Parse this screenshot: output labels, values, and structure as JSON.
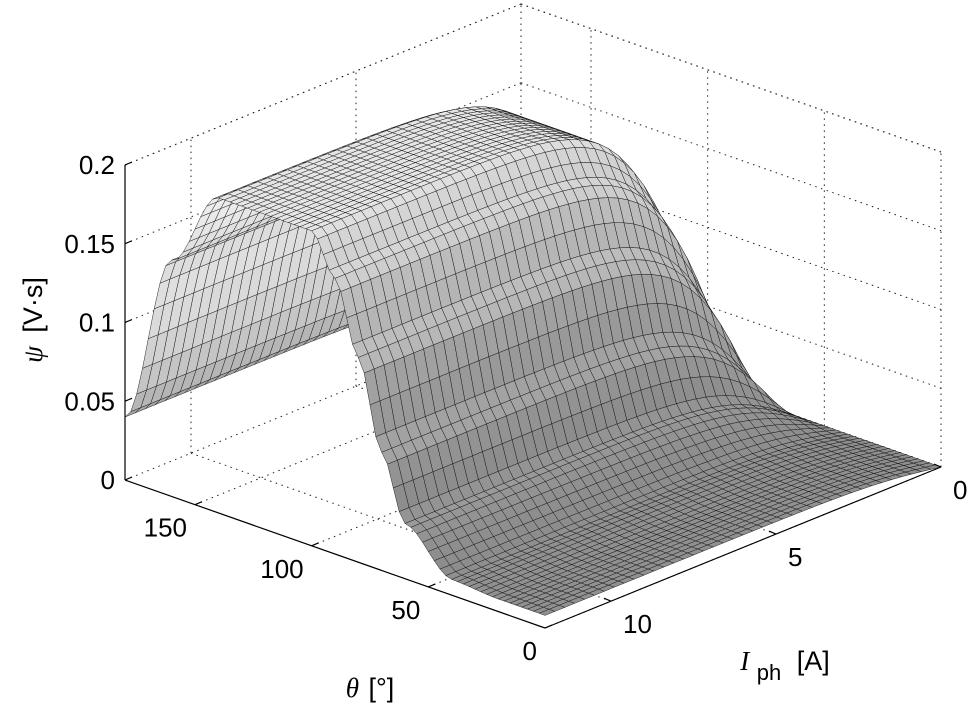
{
  "chart_data": {
    "type": "surface",
    "title": "",
    "x_axis": {
      "name": "theta",
      "symbol": "θ",
      "unit": "[°]",
      "range": [
        0,
        180
      ],
      "ticks": [
        0,
        50,
        100,
        150
      ],
      "tick_labels": [
        "0",
        "50",
        "100",
        "150"
      ]
    },
    "y_axis": {
      "name": "I_ph",
      "symbol": "I",
      "subscript": "ph",
      "unit": "[A]",
      "range": [
        0,
        12
      ],
      "ticks": [
        0,
        5,
        10
      ],
      "tick_labels": [
        "0",
        "5",
        "10"
      ]
    },
    "z_axis": {
      "name": "psi",
      "symbol": "ψ",
      "unit": "[V·s]",
      "range": [
        0,
        0.2
      ],
      "ticks": [
        0,
        0.05,
        0.1,
        0.15,
        0.2
      ],
      "tick_labels": [
        "0",
        "0.05",
        "0.1",
        "0.15",
        "0.2"
      ]
    },
    "grid": true,
    "colormap": "gray",
    "surface": {
      "theta_samples": [
        0,
        20,
        40,
        60,
        70,
        80,
        90,
        100,
        110,
        120,
        140,
        160,
        180
      ],
      "current_samples": [
        0,
        2,
        4,
        6,
        8,
        10,
        12
      ],
      "psi_at_max_current": [
        0.008,
        0.008,
        0.01,
        0.035,
        0.075,
        0.13,
        0.175,
        0.2,
        0.2,
        0.2,
        0.2,
        0.15,
        0.04
      ],
      "psi_at_zero_current": 0.0
    }
  }
}
